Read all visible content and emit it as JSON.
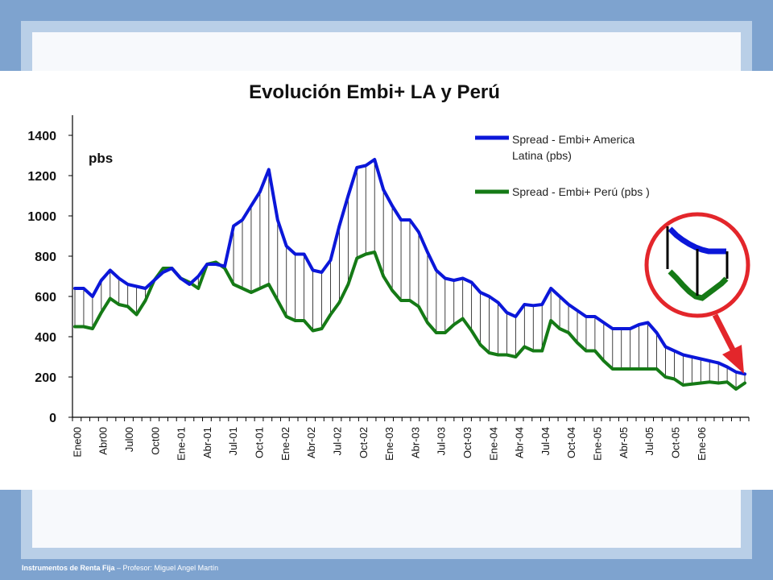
{
  "footer": {
    "course": "Instrumentos de Renta Fija",
    "professor": " – Profesor: Miguel Angel Martín"
  },
  "colors": {
    "la": "#0b17d9",
    "peru": "#157a16",
    "callout": "#e3262b"
  },
  "chart_data": {
    "type": "line",
    "title": "Evolución Embi+ LA y Perú",
    "ylabel": "pbs",
    "ylim": [
      0,
      1400
    ],
    "yticks": [
      0,
      200,
      400,
      600,
      800,
      1000,
      1200,
      1400
    ],
    "xticklabels": [
      "Ene00",
      "Abr00",
      "Jul00",
      "Oct00",
      "Ene-01",
      "Abr-01",
      "Jul-01",
      "Oct-01",
      "Ene-02",
      "Abr-02",
      "Jul-02",
      "Oct-02",
      "Ene-03",
      "Abr-03",
      "Jul-03",
      "Oct-03",
      "Ene-04",
      "Abr-04",
      "Jul-04",
      "Oct-04",
      "Ene-05",
      "Abr-05",
      "Jul-05",
      "Oct-05",
      "Ene-06"
    ],
    "legend_position": "top-right",
    "series": [
      {
        "name": "Spread - Embi+ America Latina (pbs)",
        "color": "#0b17d9",
        "values": [
          640,
          640,
          600,
          680,
          730,
          690,
          660,
          650,
          640,
          680,
          720,
          740,
          690,
          660,
          700,
          760,
          760,
          750,
          950,
          980,
          1050,
          1120,
          1230,
          980,
          850,
          810,
          810,
          730,
          720,
          780,
          950,
          1100,
          1240,
          1250,
          1280,
          1130,
          1050,
          980,
          980,
          920,
          820,
          730,
          690,
          680,
          690,
          670,
          620,
          600,
          570,
          520,
          500,
          560,
          555,
          560,
          640,
          600,
          560,
          530,
          500,
          500,
          470,
          440,
          440,
          440,
          460,
          470,
          420,
          350,
          330,
          310,
          300,
          290,
          280,
          270,
          250,
          225,
          215
        ]
      },
      {
        "name": "Spread - Embi+ Perú (pbs )",
        "color": "#157a16",
        "values": [
          450,
          450,
          440,
          520,
          590,
          560,
          550,
          510,
          580,
          680,
          740,
          740,
          690,
          670,
          640,
          760,
          770,
          740,
          660,
          640,
          620,
          640,
          660,
          580,
          500,
          480,
          480,
          430,
          440,
          510,
          570,
          660,
          790,
          810,
          820,
          700,
          630,
          580,
          580,
          550,
          470,
          420,
          420,
          460,
          490,
          430,
          360,
          320,
          310,
          310,
          300,
          350,
          330,
          330,
          480,
          440,
          420,
          370,
          330,
          330,
          280,
          240,
          240,
          240,
          240,
          240,
          240,
          200,
          190,
          160,
          165,
          170,
          175,
          170,
          175,
          140,
          170
        ]
      }
    ],
    "annotation": {
      "type": "zoom-callout",
      "description_hidden": true
    }
  }
}
